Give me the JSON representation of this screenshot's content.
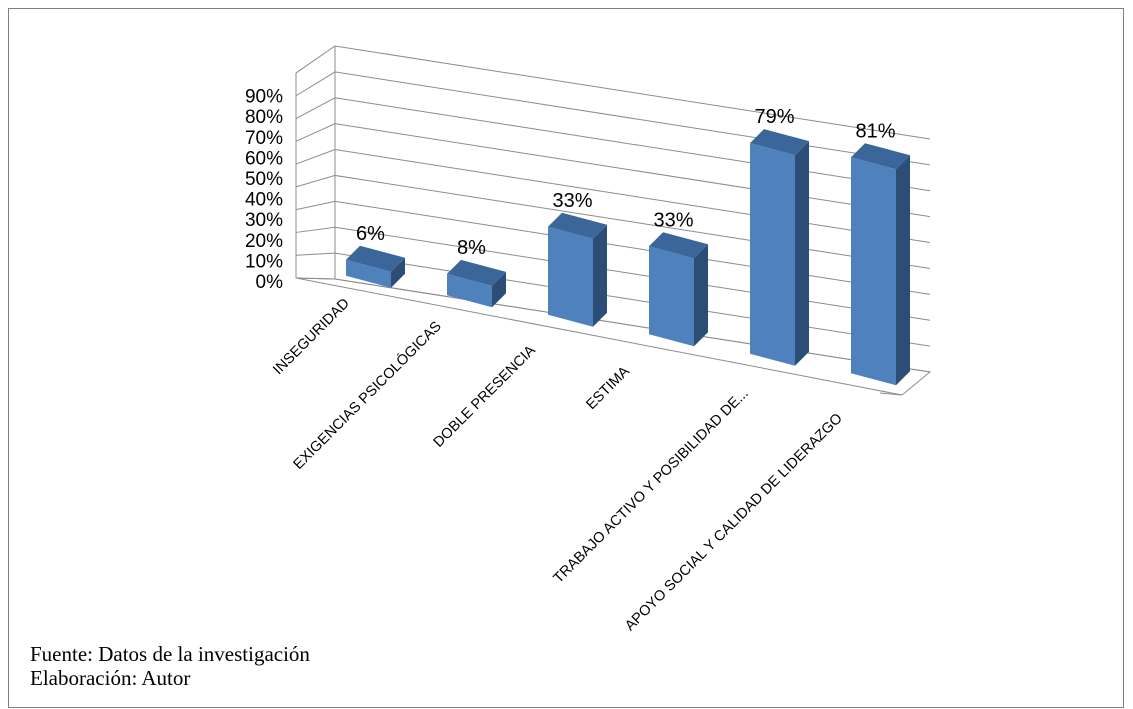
{
  "chart_data": {
    "type": "bar",
    "style": "3d-column",
    "categories": [
      "INSEGURIDAD",
      "EXIGENCIAS PSICOLÓGICAS",
      "DOBLE PRESENCIA",
      "ESTIMA",
      "TRABAJO ACTIVO Y POSIBILIDAD DE...",
      "APOYO SOCIAL Y CALIDAD DE LIDERAZGO"
    ],
    "values": [
      6,
      8,
      33,
      33,
      79,
      81
    ],
    "data_labels": [
      "6%",
      "8%",
      "33%",
      "33%",
      "79%",
      "81%"
    ],
    "yticks": [
      "0%",
      "10%",
      "20%",
      "30%",
      "40%",
      "50%",
      "60%",
      "70%",
      "80%",
      "90%"
    ],
    "ylim": [
      0,
      90
    ],
    "grid": true,
    "legend": "none",
    "colors": {
      "bar_front": "#4f81bd",
      "bar_top": "#3a6699",
      "bar_side": "#2c4d75",
      "grid": "#8c8c8c"
    }
  },
  "footer": {
    "source": "Fuente: Datos de la investigación",
    "author": "Elaboración: Autor"
  }
}
